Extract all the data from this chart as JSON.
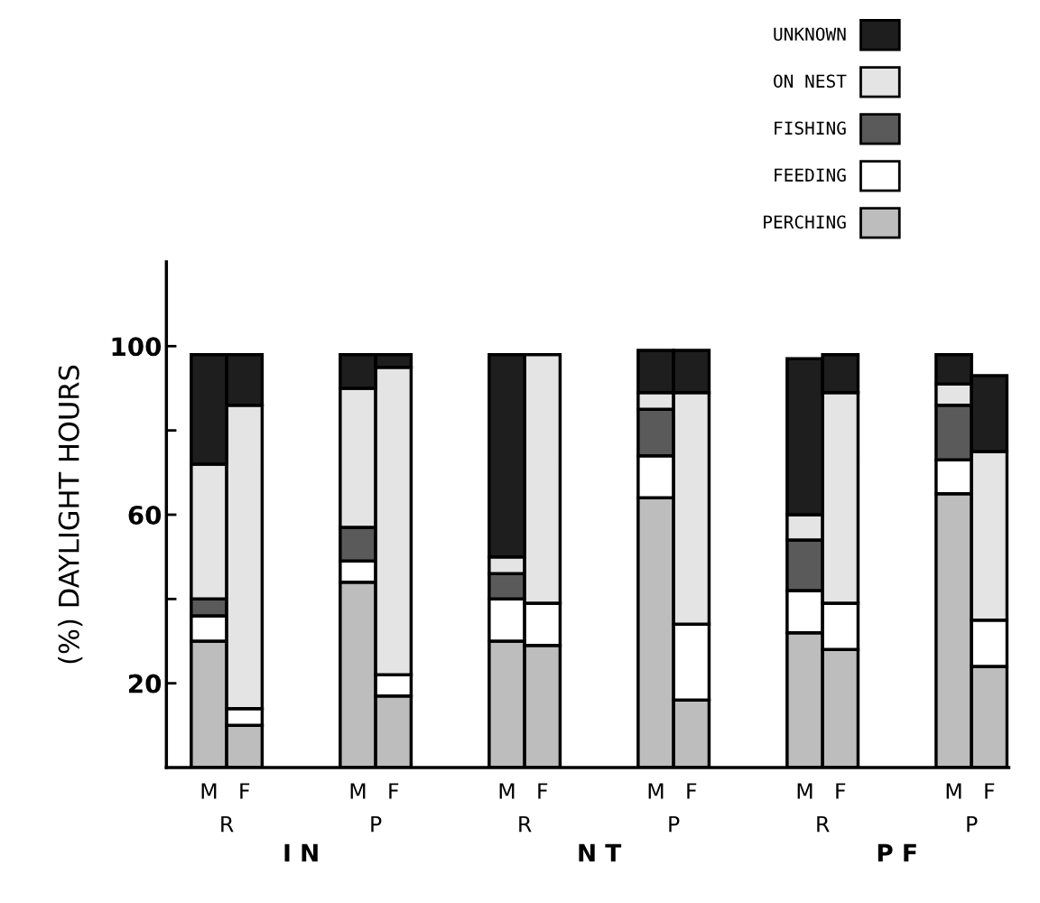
{
  "chart_data": {
    "type": "bar",
    "stacked": true,
    "ylabel": "(%) DAYLIGHT HOURS",
    "categories": [
      "M",
      "F",
      "M",
      "F",
      "M",
      "F",
      "M",
      "F",
      "M",
      "F",
      "M",
      "F"
    ],
    "series": [
      {
        "name": "PERCHING",
        "color": "#bdbdbd",
        "values": [
          30,
          10,
          44,
          17,
          30,
          29,
          64,
          16,
          32,
          28,
          65,
          24
        ]
      },
      {
        "name": "FEEDING",
        "color": "#ffffff",
        "values": [
          6,
          4,
          5,
          5,
          10,
          10,
          10,
          18,
          10,
          11,
          8,
          11
        ]
      },
      {
        "name": "FISHING",
        "color": "#5a5a5a",
        "values": [
          4,
          0,
          8,
          0,
          6,
          0,
          11,
          0,
          12,
          0,
          13,
          0
        ]
      },
      {
        "name": "ON NEST",
        "color": "#e4e4e4",
        "values": [
          32,
          72,
          33,
          73,
          4,
          59,
          4,
          55,
          6,
          50,
          5,
          40
        ]
      },
      {
        "name": "UNKNOWN",
        "color": "#1e1e1e",
        "values": [
          26,
          12,
          8,
          3,
          48,
          0,
          10,
          10,
          37,
          9,
          7,
          18
        ]
      }
    ],
    "annotations": [
      "R",
      "P",
      "R",
      "P",
      "R",
      "P",
      "I N",
      "N T",
      "P F"
    ],
    "ylim": [
      0,
      120
    ],
    "yticks": [
      20,
      {
        "value": 40,
        "label": null
      },
      60,
      {
        "value": 80,
        "label": null
      },
      100
    ],
    "grid": false,
    "legend": "top right"
  }
}
